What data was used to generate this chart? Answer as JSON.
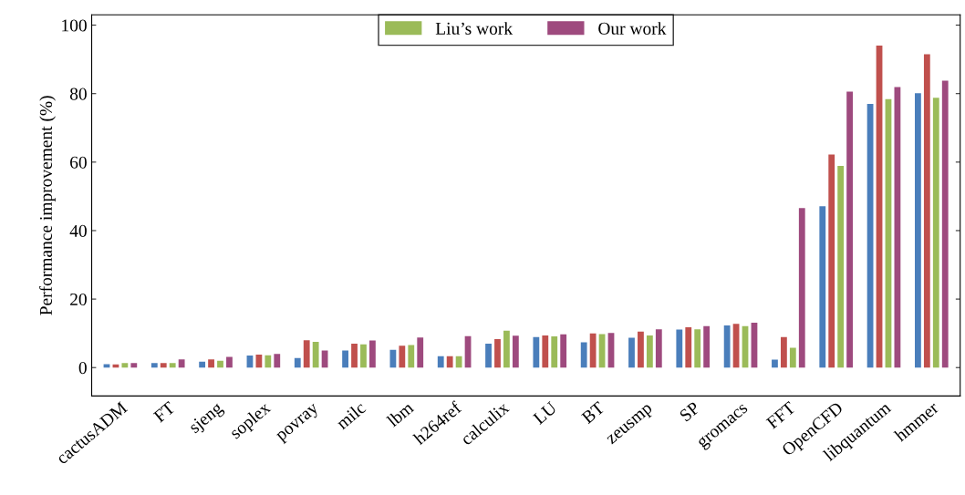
{
  "chart_data": {
    "type": "bar",
    "ylabel": "Performance improvement (%)",
    "categories": [
      "cactusADM",
      "FT",
      "sjeng",
      "soplex",
      "povray",
      "milc",
      "lbm",
      "h264ref",
      "calculix",
      "LU",
      "BT",
      "zeusmp",
      "SP",
      "gromacs",
      "FFT",
      "OpenCFD",
      "libquantum",
      "hmmer"
    ],
    "series": [
      {
        "color": "#4a7ebb",
        "values": [
          1.0,
          1.3,
          1.7,
          3.5,
          2.8,
          5.0,
          5.2,
          3.3,
          7.0,
          8.9,
          7.4,
          8.7,
          11.1,
          12.3,
          2.3,
          47.1,
          77.0,
          80.1
        ]
      },
      {
        "color": "#c0504d",
        "values": [
          0.9,
          1.3,
          2.4,
          3.8,
          8.0,
          7.0,
          6.4,
          3.3,
          8.3,
          9.4,
          10.0,
          10.5,
          11.8,
          12.8,
          8.9,
          62.2,
          94.0,
          91.5
        ]
      },
      {
        "name": "Liu’s work",
        "color": "#9bbb59",
        "values": [
          1.3,
          1.3,
          2.0,
          3.6,
          7.5,
          6.8,
          6.6,
          3.3,
          10.8,
          9.1,
          9.8,
          9.4,
          11.2,
          12.1,
          5.8,
          58.9,
          78.4,
          78.8
        ]
      },
      {
        "name": "Our work",
        "color": "#9e4a7e",
        "values": [
          1.3,
          2.4,
          3.1,
          4.0,
          5.0,
          7.9,
          8.8,
          9.2,
          9.3,
          9.7,
          10.1,
          11.2,
          12.1,
          13.1,
          46.6,
          80.6,
          81.9,
          83.8
        ]
      }
    ],
    "ylim": [
      -8.3,
      103
    ],
    "yticks": [
      0,
      20,
      40,
      60,
      80,
      100
    ],
    "grid": false,
    "legend": "top"
  }
}
